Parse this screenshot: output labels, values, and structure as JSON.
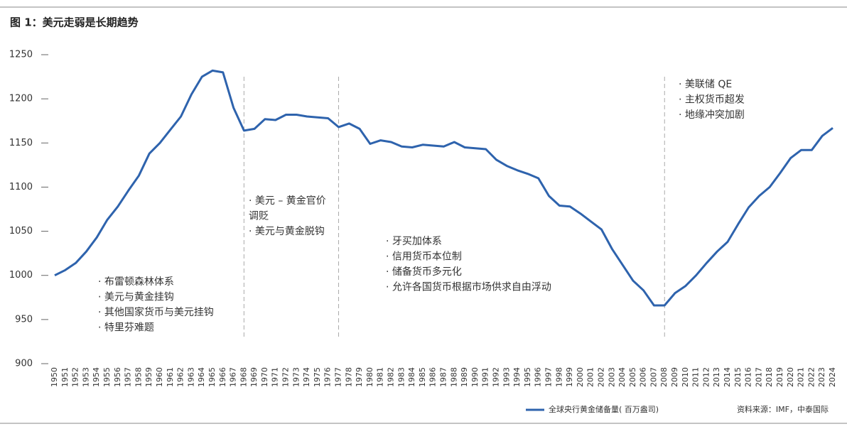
{
  "chart_data": {
    "type": "line",
    "title": "图 1：美元走弱是长期趋势",
    "categories": [
      "1950",
      "1951",
      "1952",
      "1953",
      "1954",
      "1955",
      "1956",
      "1957",
      "1958",
      "1959",
      "1960",
      "1961",
      "1962",
      "1963",
      "1964",
      "1965",
      "1966",
      "1967",
      "1968",
      "1969",
      "1970",
      "1971",
      "1972",
      "1973",
      "1974",
      "1975",
      "1976",
      "1977",
      "1978",
      "1979",
      "1980",
      "1981",
      "1982",
      "1983",
      "1984",
      "1985",
      "1986",
      "1987",
      "1988",
      "1989",
      "1990",
      "1991",
      "1992",
      "1993",
      "1994",
      "1995",
      "1996",
      "1997",
      "1998",
      "1999",
      "2000",
      "2001",
      "2002",
      "2003",
      "2004",
      "2005",
      "2006",
      "2007",
      "2008",
      "2009",
      "2010",
      "2011",
      "2012",
      "2013",
      "2014",
      "2015",
      "2016",
      "2017",
      "2018",
      "2019",
      "2020",
      "2021",
      "2022",
      "2023",
      "2024"
    ],
    "series": [
      {
        "name": "全球央行黄金储备量( 百万盎司)",
        "color": "#2e63ad",
        "values": [
          1000,
          1006,
          1014,
          1027,
          1043,
          1063,
          1078,
          1096,
          1113,
          1138,
          1150,
          1165,
          1180,
          1205,
          1225,
          1232,
          1230,
          1190,
          1164,
          1166,
          1177,
          1176,
          1182,
          1182,
          1180,
          1179,
          1178,
          1168,
          1172,
          1166,
          1149,
          1153,
          1151,
          1146,
          1145,
          1148,
          1147,
          1146,
          1151,
          1145,
          1144,
          1143,
          1131,
          1124,
          1119,
          1115,
          1110,
          1090,
          1079,
          1078,
          1070,
          1061,
          1052,
          1030,
          1012,
          994,
          983,
          966,
          966,
          980,
          988,
          1000,
          1014,
          1027,
          1038,
          1058,
          1077,
          1090,
          1100,
          1116,
          1133,
          1142,
          1142,
          1158,
          1167
        ]
      }
    ],
    "ylim": [
      900,
      1250
    ],
    "yticks": [
      900,
      950,
      1000,
      1050,
      1100,
      1150,
      1200,
      1250
    ],
    "reference_lines": [
      "1968",
      "1977",
      "2008"
    ],
    "annotations": [
      [
        "· 布雷顿森林体系",
        "· 美元与黄金挂钩",
        "· 其他国家货币与美元挂钩",
        "· 特里芬难题"
      ],
      [
        "· 美元 – 黄金官价",
        "调贬",
        "· 美元与黄金脱钩"
      ],
      [
        "· 牙买加体系",
        "· 信用货币本位制",
        "· 储备货币多元化",
        "· 允许各国货币根据市场供求自由浮动"
      ],
      [
        "· 美联储 QE",
        "· 主权货币超发",
        "· 地缘冲突加剧"
      ]
    ],
    "source": "资料来源：IMF，中泰国际"
  }
}
